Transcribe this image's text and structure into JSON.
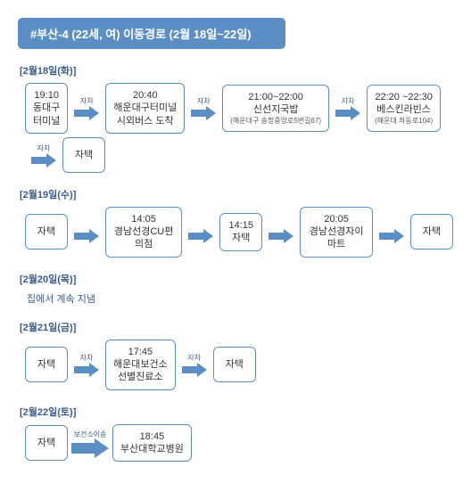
{
  "colors": {
    "accent": "#5b8ec4",
    "text_dark": "#3a5b8c",
    "box_border": "#5b8ec4",
    "bg": "#ffffff"
  },
  "title": "#부산-4 (22세, 여) 이동경로 (2월 18일~22일)",
  "days": [
    {
      "label": "[2월18일(화)]",
      "rows": [
        [
          {
            "type": "box",
            "time": "19:10",
            "place": "동대구\n터미널"
          },
          {
            "type": "arrow",
            "label": "자차"
          },
          {
            "type": "box",
            "time": "20:40",
            "place": "해운대구터미널\n시외버스 도착"
          },
          {
            "type": "arrow",
            "label": "자차"
          },
          {
            "type": "box",
            "time": "21:00~22:00",
            "place": "신선지국밥",
            "sub": "(해운대구 송정중앙로5번길67)"
          },
          {
            "type": "arrow",
            "label": "자차"
          },
          {
            "type": "box",
            "time": "22:20 ~22:30",
            "place": "베스킨라빈스",
            "sub": "(해운대 좌동로104)"
          }
        ],
        [
          {
            "type": "arrow",
            "label": "자차"
          },
          {
            "type": "box",
            "place": "자택"
          }
        ]
      ]
    },
    {
      "label": "[2월19일(수)]",
      "rows": [
        [
          {
            "type": "box",
            "place": "자택"
          },
          {
            "type": "arrow",
            "label": ""
          },
          {
            "type": "box",
            "time": "14:05",
            "place": "경남선경CU편의점"
          },
          {
            "type": "arrow",
            "label": ""
          },
          {
            "type": "box",
            "time": "14:15",
            "place": "자택"
          },
          {
            "type": "arrow",
            "label": ""
          },
          {
            "type": "box",
            "time": "20:05",
            "place": "경남선경자이마트"
          },
          {
            "type": "arrow",
            "label": ""
          },
          {
            "type": "box",
            "place": "자택"
          }
        ]
      ]
    },
    {
      "label": "[2월20일(목)]",
      "note": "집에서 계속 지냄",
      "rows": []
    },
    {
      "label": "[2월21일(금)]",
      "rows": [
        [
          {
            "type": "box",
            "place": "자택"
          },
          {
            "type": "arrow",
            "label": "자차"
          },
          {
            "type": "box",
            "time": "17:45",
            "place": "해운대보건소\n선별진료소"
          },
          {
            "type": "arrow",
            "label": "자차"
          },
          {
            "type": "box",
            "place": "자택"
          }
        ]
      ]
    },
    {
      "label": "[2월22일(토)]",
      "rows": [
        [
          {
            "type": "box",
            "place": "자택"
          },
          {
            "type": "arrow",
            "label": "보건소이송",
            "big": true
          },
          {
            "type": "box",
            "time": "18:45",
            "place": "부산대학교병원"
          }
        ]
      ]
    }
  ]
}
